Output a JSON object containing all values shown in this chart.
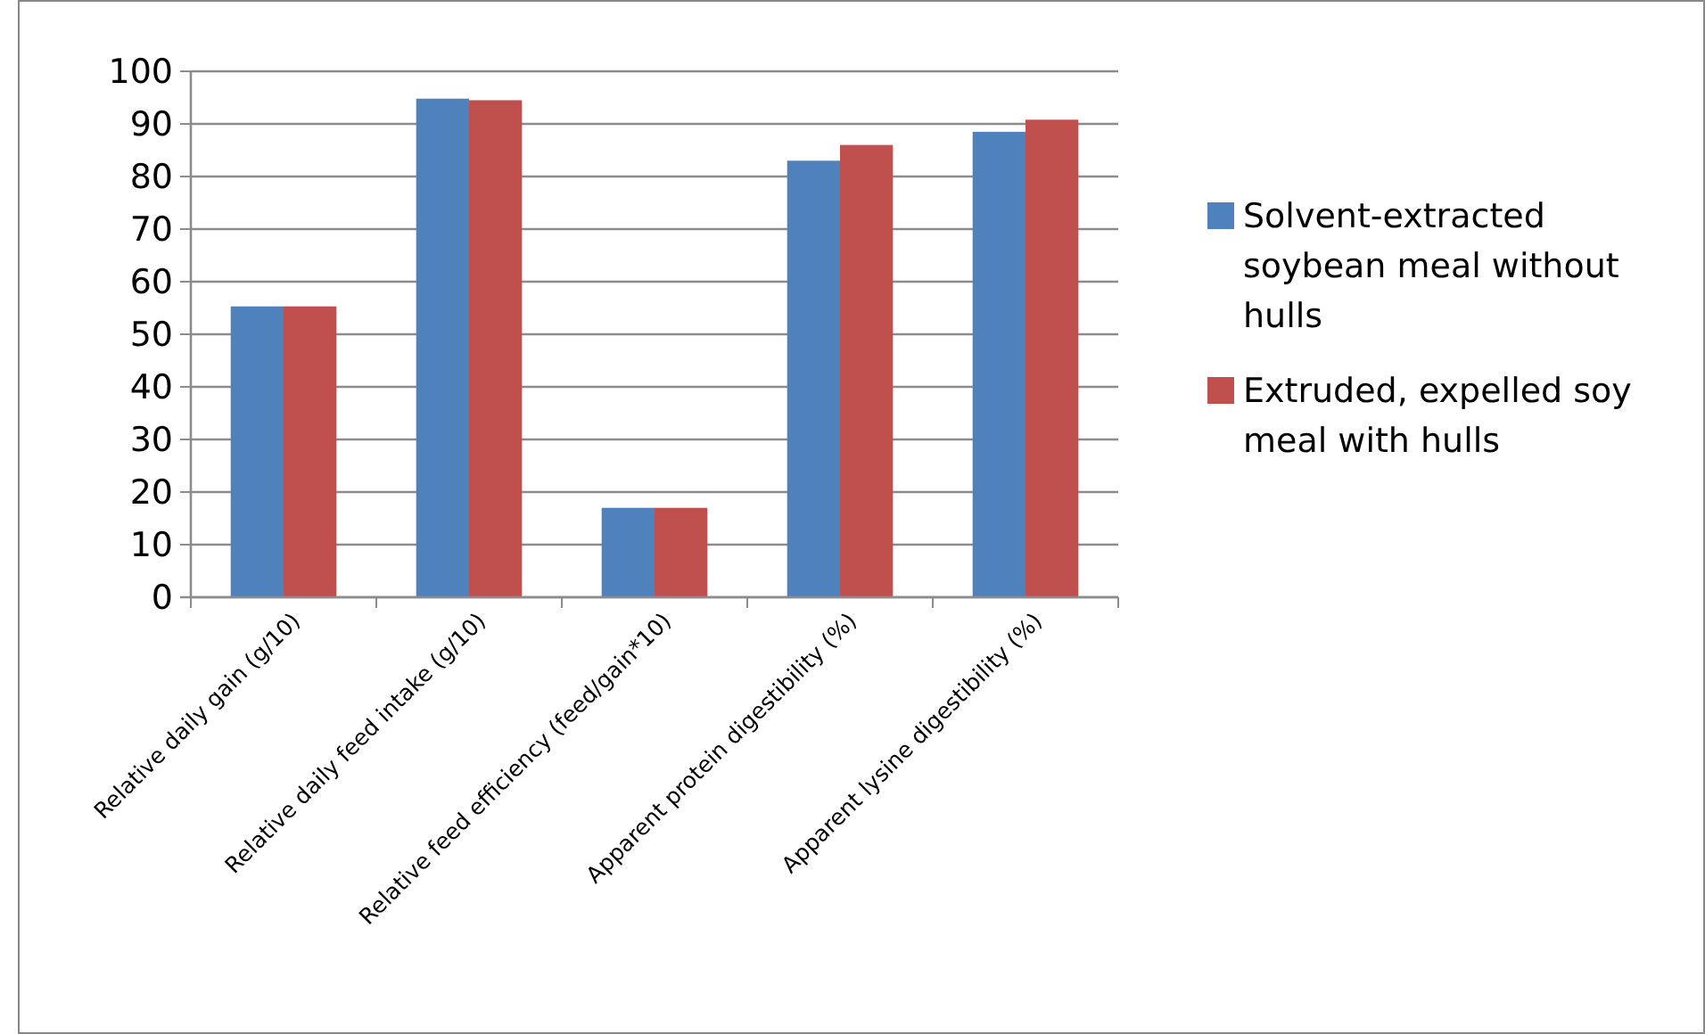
{
  "chart_data": {
    "type": "bar",
    "categories": [
      "Relative daily gain (g/10)",
      "Relative daily feed intake (g/10)",
      "Relative feed efficiency (feed/gain*10)",
      "Apparent protein digestibility (%)",
      "Apparent lysine digestibility (%)"
    ],
    "series": [
      {
        "name": "Solvent-extracted soybean meal without hulls",
        "color": "#4f81bd",
        "values": [
          55.3,
          94.8,
          17,
          83,
          88.5
        ]
      },
      {
        "name": "Extruded, expelled soy meal with hulls",
        "color": "#c0504d",
        "values": [
          55.3,
          94.5,
          17,
          86,
          90.8
        ]
      }
    ],
    "ylim": [
      0,
      100
    ],
    "yticks": [
      0,
      10,
      20,
      30,
      40,
      50,
      60,
      70,
      80,
      90,
      100
    ],
    "grid": "y",
    "legend": "right"
  }
}
